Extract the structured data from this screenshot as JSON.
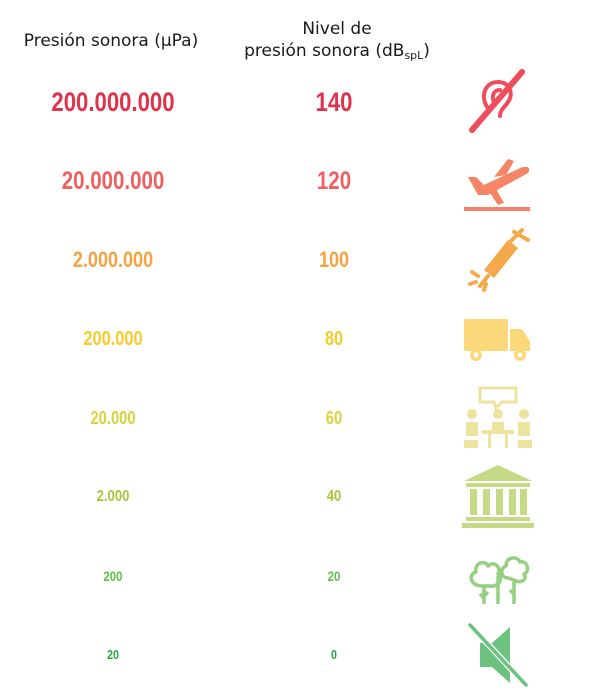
{
  "headers": {
    "pressure": "Presión sonora (μPa)",
    "level_line1": "Nivel de",
    "level_line2": "presión sonora (dB",
    "level_sub": "spL",
    "level_close": ")"
  },
  "rows": [
    {
      "pressure": "200.000.000",
      "level": "140",
      "color": "#e0324b",
      "icon": "hearing-damage-icon"
    },
    {
      "pressure": "20.000.000",
      "level": "120",
      "color": "#f05f5f",
      "icon": "airplane-takeoff-icon"
    },
    {
      "pressure": "2.000.000",
      "level": "100",
      "color": "#f7a23f",
      "icon": "jackhammer-icon"
    },
    {
      "pressure": "200.000",
      "level": "80",
      "color": "#f6cc2c",
      "icon": "truck-icon"
    },
    {
      "pressure": "20.000",
      "level": "60",
      "color": "#d8d23c",
      "icon": "conversation-icon"
    },
    {
      "pressure": "2.000",
      "level": "40",
      "color": "#a6c63a",
      "icon": "library-building-icon"
    },
    {
      "pressure": "200",
      "level": "20",
      "color": "#5cc245",
      "icon": "trees-icon"
    },
    {
      "pressure": "20",
      "level": "0",
      "color": "#27a83a",
      "icon": "muted-speaker-icon"
    }
  ],
  "icon_colors": [
    "#ef4c5c",
    "#f68466",
    "#f6a94a",
    "#fbd97a",
    "#eee39e",
    "#c5da84",
    "#94d07f",
    "#6cc27e"
  ]
}
